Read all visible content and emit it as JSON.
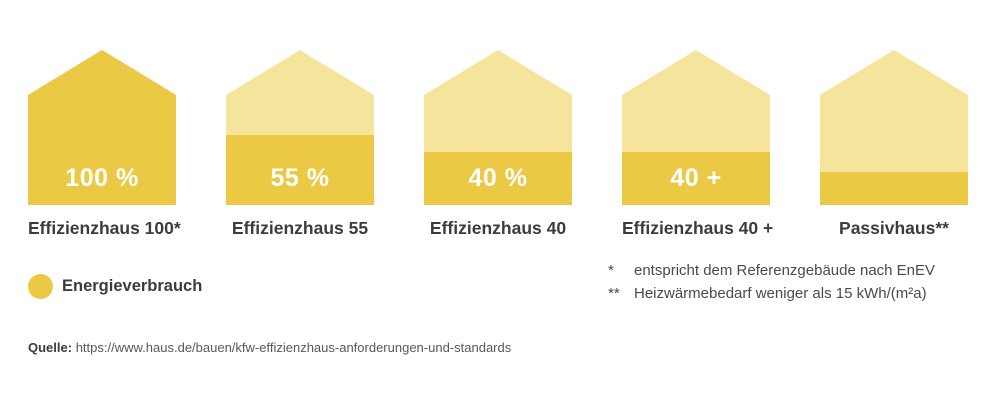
{
  "colors": {
    "energy_fill": "#ecc944",
    "house_background": "#f5e59c",
    "label_text": "#3c3c3c",
    "footnote_text": "#4a4a4a",
    "source_text": "#585858",
    "value_text": "#ffffff"
  },
  "houses": [
    {
      "label": "Effizienzhaus 100*",
      "value_label": "100 %",
      "fill_percent": 100
    },
    {
      "label": "Effizienzhaus 55",
      "value_label": "55 %",
      "fill_percent": 45
    },
    {
      "label": "Effizienzhaus 40",
      "value_label": "40 %",
      "fill_percent": 34
    },
    {
      "label": "Effizienzhaus 40 +",
      "value_label": "40 +",
      "fill_percent": 34
    },
    {
      "label": "Passivhaus**",
      "value_label": "",
      "fill_percent": 21
    }
  ],
  "legend": {
    "label": "Energieverbrauch",
    "swatch_color": "#ecc944"
  },
  "footnotes": [
    {
      "marker": "*",
      "text": "entspricht dem Referenzgebäude nach EnEV"
    },
    {
      "marker": "**",
      "text": "Heizwärmebedarf weniger als 15 kWh/(m²a)"
    }
  ],
  "source": {
    "label": "Quelle:",
    "url": "https://www.haus.de/bauen/kfw-effizienzhaus-anforderungen-und-standards"
  },
  "chart_data": {
    "type": "bar",
    "categories": [
      "Effizienzhaus 100*",
      "Effizienzhaus 55",
      "Effizienzhaus 40",
      "Effizienzhaus 40 +",
      "Passivhaus**"
    ],
    "values": [
      100,
      55,
      40,
      40,
      null
    ],
    "value_labels": [
      "100 %",
      "55 %",
      "40 %",
      "40 +",
      ""
    ],
    "fill_percent_of_house_height": [
      100,
      45,
      34,
      34,
      21
    ],
    "series_name": "Energieverbrauch",
    "title": "",
    "xlabel": "",
    "ylabel": "Energieverbrauch (%)",
    "ylim": [
      0,
      100
    ],
    "legend_position": "bottom-left",
    "grid": false,
    "notes": [
      "* entspricht dem Referenzgebäude nach EnEV",
      "** Heizwärmebedarf weniger als 15 kWh/(m²a)"
    ]
  }
}
